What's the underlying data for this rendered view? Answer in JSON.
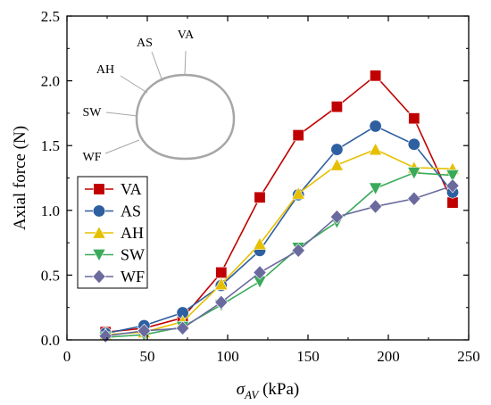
{
  "chart_data": {
    "type": "line",
    "title": "",
    "xlabel_symbol": "σ",
    "xlabel_subscript": "AV",
    "xlabel_unit": " (kPa)",
    "ylabel": "Axial force (N)",
    "xlim": [
      0,
      250
    ],
    "ylim": [
      0,
      2.5
    ],
    "xticks": [
      "0",
      "50",
      "100",
      "150",
      "200",
      "250"
    ],
    "yticks": [
      "0.0",
      "0.5",
      "1.0",
      "1.5",
      "2.0",
      "2.5"
    ],
    "grid": false,
    "legend_position": "left-middle",
    "x": [
      24,
      48,
      72,
      96,
      120,
      144,
      168,
      192,
      216,
      240
    ],
    "series": [
      {
        "name": "VA",
        "color": "#c00000",
        "marker": "square",
        "values": [
          0.06,
          0.09,
          0.17,
          0.52,
          1.1,
          1.58,
          1.8,
          2.04,
          1.71,
          1.06
        ]
      },
      {
        "name": "AS",
        "color": "#2e5fa0",
        "marker": "circle",
        "values": [
          0.05,
          0.11,
          0.21,
          0.42,
          0.69,
          1.12,
          1.47,
          1.65,
          1.51,
          1.14
        ]
      },
      {
        "name": "AH",
        "color": "#e6c000",
        "marker": "triangle-up",
        "values": [
          0.04,
          0.06,
          0.14,
          0.43,
          0.74,
          1.13,
          1.35,
          1.47,
          1.33,
          1.32
        ]
      },
      {
        "name": "SW",
        "color": "#3aaa5a",
        "marker": "triangle-down",
        "values": [
          0.02,
          0.04,
          0.1,
          0.27,
          0.45,
          0.71,
          0.91,
          1.17,
          1.29,
          1.27
        ]
      },
      {
        "name": "WF",
        "color": "#6a6a9e",
        "marker": "diamond",
        "values": [
          0.03,
          0.07,
          0.09,
          0.29,
          0.52,
          0.69,
          0.95,
          1.03,
          1.09,
          1.19
        ]
      }
    ],
    "annotations": [
      "VA",
      "AS",
      "AH",
      "SW",
      "WF"
    ]
  }
}
